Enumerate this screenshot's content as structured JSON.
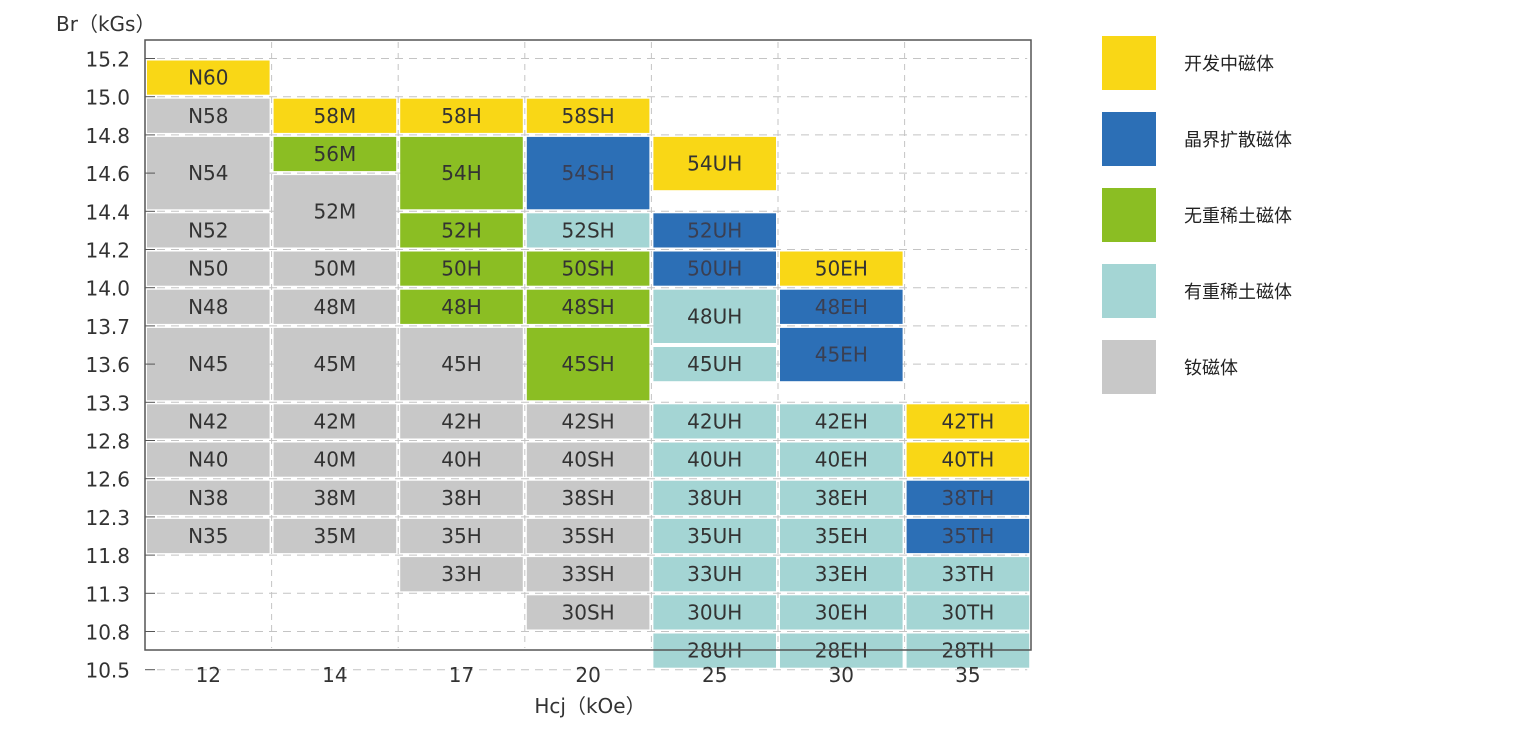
{
  "chart_data": {
    "type": "table",
    "title": "",
    "ylabel": "Br（kGs）",
    "xlabel": "Hcj（kOe）",
    "x_ticks": [
      "12",
      "14",
      "17",
      "20",
      "25",
      "30",
      "35"
    ],
    "y_ticks": [
      "15.2",
      "15.0",
      "14.8",
      "14.6",
      "14.4",
      "14.2",
      "14.0",
      "13.7",
      "13.6",
      "13.3",
      "12.8",
      "12.6",
      "12.3",
      "11.8",
      "11.3",
      "10.8",
      "10.5"
    ],
    "categories": {
      "dev": "开发中磁体",
      "gbd": "晶界扩散磁体",
      "nohre": "无重稀土磁体",
      "hre": "有重稀土磁体",
      "ndfeb": "钕磁体"
    },
    "colors": {
      "dev": "#F9D716",
      "gbd": "#2C6FB6",
      "nohre": "#8BBE23",
      "hre": "#A4D5D4",
      "ndfeb": "#C8C8C8",
      "grid": "#C4C4C4",
      "axis": "#555555",
      "text": "#333333",
      "text_dark_bg": "#3A3F52"
    },
    "grades": [
      {
        "label": "N60",
        "col": 0,
        "top": 0,
        "rows": 1,
        "cat": "dev"
      },
      {
        "label": "N58",
        "col": 0,
        "top": 1,
        "rows": 1,
        "cat": "ndfeb"
      },
      {
        "label": "N54",
        "col": 0,
        "top": 2,
        "rows": 2,
        "cat": "ndfeb"
      },
      {
        "label": "N52",
        "col": 0,
        "top": 4,
        "rows": 1,
        "cat": "ndfeb"
      },
      {
        "label": "N50",
        "col": 0,
        "top": 5,
        "rows": 1,
        "cat": "ndfeb"
      },
      {
        "label": "N48",
        "col": 0,
        "top": 6,
        "rows": 1,
        "cat": "ndfeb"
      },
      {
        "label": "N45",
        "col": 0,
        "top": 7,
        "rows": 2,
        "cat": "ndfeb"
      },
      {
        "label": "N42",
        "col": 0,
        "top": 9,
        "rows": 1,
        "cat": "ndfeb"
      },
      {
        "label": "N40",
        "col": 0,
        "top": 10,
        "rows": 1,
        "cat": "ndfeb"
      },
      {
        "label": "N38",
        "col": 0,
        "top": 11,
        "rows": 1,
        "cat": "ndfeb"
      },
      {
        "label": "N35",
        "col": 0,
        "top": 12,
        "rows": 1,
        "cat": "ndfeb"
      },
      {
        "label": "58M",
        "col": 1,
        "top": 1,
        "rows": 1,
        "cat": "dev"
      },
      {
        "label": "56M",
        "col": 1,
        "top": 2,
        "rows": 1,
        "cat": "nohre"
      },
      {
        "label": "52M",
        "col": 1,
        "top": 3,
        "rows": 2,
        "cat": "ndfeb"
      },
      {
        "label": "50M",
        "col": 1,
        "top": 5,
        "rows": 1,
        "cat": "ndfeb"
      },
      {
        "label": "48M",
        "col": 1,
        "top": 6,
        "rows": 1,
        "cat": "ndfeb"
      },
      {
        "label": "45M",
        "col": 1,
        "top": 7,
        "rows": 2,
        "cat": "ndfeb"
      },
      {
        "label": "42M",
        "col": 1,
        "top": 9,
        "rows": 1,
        "cat": "ndfeb"
      },
      {
        "label": "40M",
        "col": 1,
        "top": 10,
        "rows": 1,
        "cat": "ndfeb"
      },
      {
        "label": "38M",
        "col": 1,
        "top": 11,
        "rows": 1,
        "cat": "ndfeb"
      },
      {
        "label": "35M",
        "col": 1,
        "top": 12,
        "rows": 1,
        "cat": "ndfeb"
      },
      {
        "label": "58H",
        "col": 2,
        "top": 1,
        "rows": 1,
        "cat": "dev"
      },
      {
        "label": "54H",
        "col": 2,
        "top": 2,
        "rows": 2,
        "cat": "nohre"
      },
      {
        "label": "52H",
        "col": 2,
        "top": 4,
        "rows": 1,
        "cat": "nohre"
      },
      {
        "label": "50H",
        "col": 2,
        "top": 5,
        "rows": 1,
        "cat": "nohre"
      },
      {
        "label": "48H",
        "col": 2,
        "top": 6,
        "rows": 1,
        "cat": "nohre"
      },
      {
        "label": "45H",
        "col": 2,
        "top": 7,
        "rows": 2,
        "cat": "ndfeb"
      },
      {
        "label": "42H",
        "col": 2,
        "top": 9,
        "rows": 1,
        "cat": "ndfeb"
      },
      {
        "label": "40H",
        "col": 2,
        "top": 10,
        "rows": 1,
        "cat": "ndfeb"
      },
      {
        "label": "38H",
        "col": 2,
        "top": 11,
        "rows": 1,
        "cat": "ndfeb"
      },
      {
        "label": "35H",
        "col": 2,
        "top": 12,
        "rows": 1,
        "cat": "ndfeb"
      },
      {
        "label": "33H",
        "col": 2,
        "top": 13,
        "rows": 1,
        "cat": "ndfeb"
      },
      {
        "label": "58SH",
        "col": 3,
        "top": 1,
        "rows": 1,
        "cat": "dev"
      },
      {
        "label": "54SH",
        "col": 3,
        "top": 2,
        "rows": 2,
        "cat": "gbd"
      },
      {
        "label": "52SH",
        "col": 3,
        "top": 4,
        "rows": 1,
        "cat": "hre"
      },
      {
        "label": "50SH",
        "col": 3,
        "top": 5,
        "rows": 1,
        "cat": "nohre"
      },
      {
        "label": "48SH",
        "col": 3,
        "top": 6,
        "rows": 1,
        "cat": "nohre"
      },
      {
        "label": "45SH",
        "col": 3,
        "top": 7,
        "rows": 2,
        "cat": "nohre"
      },
      {
        "label": "42SH",
        "col": 3,
        "top": 9,
        "rows": 1,
        "cat": "ndfeb"
      },
      {
        "label": "40SH",
        "col": 3,
        "top": 10,
        "rows": 1,
        "cat": "ndfeb"
      },
      {
        "label": "38SH",
        "col": 3,
        "top": 11,
        "rows": 1,
        "cat": "ndfeb"
      },
      {
        "label": "35SH",
        "col": 3,
        "top": 12,
        "rows": 1,
        "cat": "ndfeb"
      },
      {
        "label": "33SH",
        "col": 3,
        "top": 13,
        "rows": 1,
        "cat": "ndfeb"
      },
      {
        "label": "30SH",
        "col": 3,
        "top": 14,
        "rows": 1,
        "cat": "ndfeb"
      },
      {
        "label": "54UH",
        "col": 4,
        "top": 2,
        "rows": 1.5,
        "cat": "dev"
      },
      {
        "label": "52UH",
        "col": 4,
        "top": 4,
        "rows": 1,
        "cat": "gbd"
      },
      {
        "label": "50UH",
        "col": 4,
        "top": 5,
        "rows": 1,
        "cat": "gbd"
      },
      {
        "label": "48UH",
        "col": 4,
        "top": 6,
        "rows": 1.5,
        "cat": "hre"
      },
      {
        "label": "45UH",
        "col": 4,
        "top": 7.5,
        "rows": 1,
        "cat": "hre"
      },
      {
        "label": "42UH",
        "col": 4,
        "top": 9,
        "rows": 1,
        "cat": "hre"
      },
      {
        "label": "40UH",
        "col": 4,
        "top": 10,
        "rows": 1,
        "cat": "hre"
      },
      {
        "label": "38UH",
        "col": 4,
        "top": 11,
        "rows": 1,
        "cat": "hre"
      },
      {
        "label": "35UH",
        "col": 4,
        "top": 12,
        "rows": 1,
        "cat": "hre"
      },
      {
        "label": "33UH",
        "col": 4,
        "top": 13,
        "rows": 1,
        "cat": "hre"
      },
      {
        "label": "30UH",
        "col": 4,
        "top": 14,
        "rows": 1,
        "cat": "hre"
      },
      {
        "label": "28UH",
        "col": 4,
        "top": 15,
        "rows": 1,
        "cat": "hre"
      },
      {
        "label": "50EH",
        "col": 5,
        "top": 5,
        "rows": 1,
        "cat": "dev"
      },
      {
        "label": "48EH",
        "col": 5,
        "top": 6,
        "rows": 1,
        "cat": "gbd"
      },
      {
        "label": "45EH",
        "col": 5,
        "top": 7,
        "rows": 1.5,
        "cat": "gbd"
      },
      {
        "label": "42EH",
        "col": 5,
        "top": 9,
        "rows": 1,
        "cat": "hre"
      },
      {
        "label": "40EH",
        "col": 5,
        "top": 10,
        "rows": 1,
        "cat": "hre"
      },
      {
        "label": "38EH",
        "col": 5,
        "top": 11,
        "rows": 1,
        "cat": "hre"
      },
      {
        "label": "35EH",
        "col": 5,
        "top": 12,
        "rows": 1,
        "cat": "hre"
      },
      {
        "label": "33EH",
        "col": 5,
        "top": 13,
        "rows": 1,
        "cat": "hre"
      },
      {
        "label": "30EH",
        "col": 5,
        "top": 14,
        "rows": 1,
        "cat": "hre"
      },
      {
        "label": "28EH",
        "col": 5,
        "top": 15,
        "rows": 1,
        "cat": "hre"
      },
      {
        "label": "42TH",
        "col": 6,
        "top": 9,
        "rows": 1,
        "cat": "dev"
      },
      {
        "label": "40TH",
        "col": 6,
        "top": 10,
        "rows": 1,
        "cat": "dev"
      },
      {
        "label": "38TH",
        "col": 6,
        "top": 11,
        "rows": 1,
        "cat": "gbd"
      },
      {
        "label": "35TH",
        "col": 6,
        "top": 12,
        "rows": 1,
        "cat": "gbd"
      },
      {
        "label": "33TH",
        "col": 6,
        "top": 13,
        "rows": 1,
        "cat": "hre"
      },
      {
        "label": "30TH",
        "col": 6,
        "top": 14,
        "rows": 1,
        "cat": "hre"
      },
      {
        "label": "28TH",
        "col": 6,
        "top": 15,
        "rows": 1,
        "cat": "hre"
      }
    ]
  },
  "legend": [
    {
      "key": "dev",
      "label": "开发中磁体"
    },
    {
      "key": "gbd",
      "label": "晶界扩散磁体"
    },
    {
      "key": "nohre",
      "label": "无重稀土磁体"
    },
    {
      "key": "hre",
      "label": "有重稀土磁体"
    },
    {
      "key": "ndfeb",
      "label": "钕磁体"
    }
  ]
}
